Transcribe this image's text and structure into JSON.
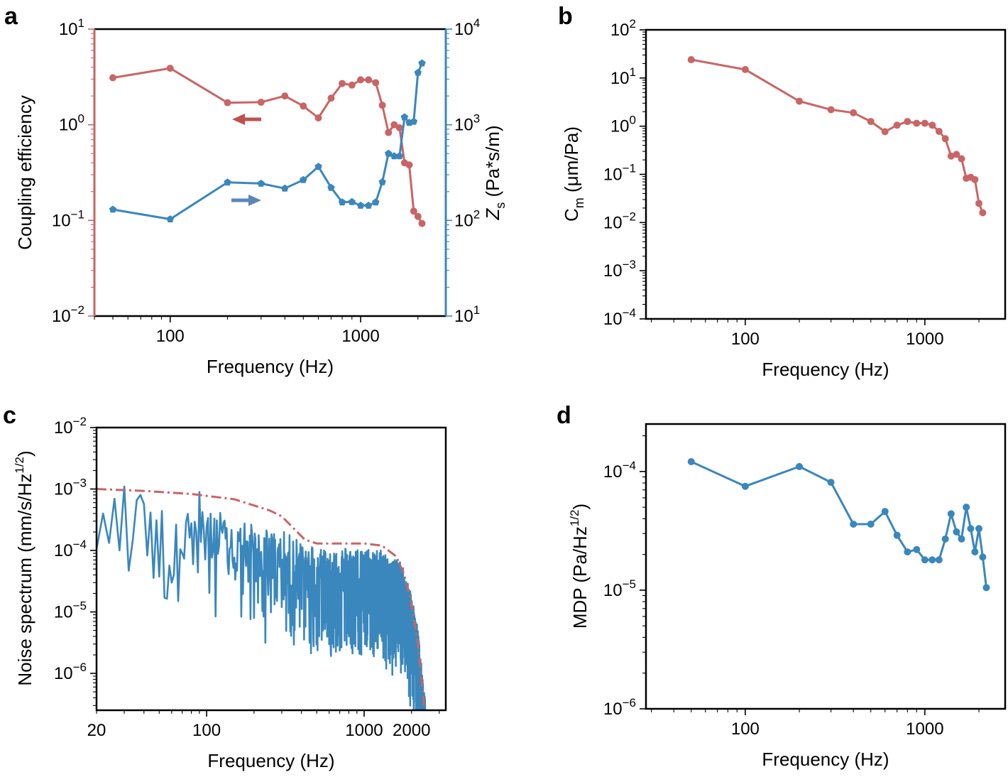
{
  "colors": {
    "red": "#c96565",
    "blue": "#3a87bd",
    "red_arrow": "#c0504d",
    "blue_arrow": "#5b86b8"
  },
  "panels": {
    "a": "a",
    "b": "b",
    "c": "c",
    "d": "d"
  },
  "common": {
    "freq_label": "Frequency (Hz)"
  },
  "chart_data": [
    {
      "id": "a",
      "type": "line",
      "title": "",
      "xlabel": "Frequency (Hz)",
      "xscale": "log",
      "xlim": [
        40,
        2800
      ],
      "xticks": [
        {
          "v": 100,
          "label": "100"
        },
        {
          "v": 1000,
          "label": "1000"
        }
      ],
      "ylabel_left": "Coupling efficiency",
      "ylim_left_log10": [
        -2,
        1
      ],
      "yticks_left": [
        {
          "e": -2,
          "label": "10",
          "sup": "−2"
        },
        {
          "e": -1,
          "label": "10",
          "sup": "−1"
        },
        {
          "e": 0,
          "label": "10",
          "sup": "0"
        },
        {
          "e": 1,
          "label": "10",
          "sup": "1"
        }
      ],
      "ylabel_right_main": "Z",
      "ylabel_right_sub": "s",
      "ylabel_right_rest": " (Pa*s/m)",
      "ylim_right_log10": [
        1,
        4
      ],
      "yticks_right": [
        {
          "e": 1,
          "label": "10",
          "sup": "1"
        },
        {
          "e": 2,
          "label": "10",
          "sup": "2"
        },
        {
          "e": 3,
          "label": "10",
          "sup": "3"
        },
        {
          "e": 4,
          "label": "10",
          "sup": "4"
        }
      ],
      "series": [
        {
          "name": "Coupling efficiency",
          "axis": "left",
          "marker": "circle",
          "x": [
            50,
            100,
            200,
            300,
            400,
            500,
            600,
            700,
            800,
            900,
            1000,
            1100,
            1200,
            1300,
            1400,
            1500,
            1600,
            1700,
            1800,
            1900,
            2000,
            2100
          ],
          "y": [
            3.1,
            3.9,
            1.7,
            1.72,
            2.0,
            1.57,
            1.18,
            1.9,
            2.7,
            2.6,
            2.95,
            2.95,
            2.75,
            1.6,
            0.83,
            1.0,
            0.93,
            0.4,
            0.38,
            0.125,
            0.11,
            0.093
          ]
        },
        {
          "name": "Zs",
          "axis": "right",
          "marker": "pentagon",
          "x": [
            50,
            100,
            200,
            300,
            400,
            500,
            600,
            700,
            800,
            900,
            1000,
            1100,
            1200,
            1300,
            1400,
            1500,
            1600,
            1700,
            1800,
            1900,
            2000,
            2100
          ],
          "y": [
            130,
            103,
            250,
            243,
            216,
            265,
            365,
            220,
            155,
            156,
            143,
            143,
            155,
            252,
            500,
            470,
            470,
            1200,
            1050,
            1080,
            3500,
            4400
          ]
        }
      ]
    },
    {
      "id": "b",
      "type": "line",
      "xlabel": "Frequency (Hz)",
      "xscale": "log",
      "xlim": [
        28,
        2800
      ],
      "xticks": [
        {
          "v": 100,
          "label": "100"
        },
        {
          "v": 1000,
          "label": "1000"
        }
      ],
      "ylabel_main": "C",
      "ylabel_sub": "m",
      "ylabel_rest": " (μm/Pa)",
      "ylim_log10": [
        -4,
        2
      ],
      "yticks": [
        {
          "e": -4,
          "label": "10",
          "sup": "−4"
        },
        {
          "e": -3,
          "label": "10",
          "sup": "−3"
        },
        {
          "e": -2,
          "label": "10",
          "sup": "−2"
        },
        {
          "e": -1,
          "label": "10",
          "sup": "−1"
        },
        {
          "e": 0,
          "label": "10",
          "sup": "0"
        },
        {
          "e": 1,
          "label": "10",
          "sup": "1"
        },
        {
          "e": 2,
          "label": "10",
          "sup": "2"
        }
      ],
      "series": [
        {
          "name": "Cm",
          "marker": "circle",
          "x": [
            50,
            100,
            200,
            300,
            400,
            500,
            600,
            700,
            800,
            900,
            1000,
            1100,
            1200,
            1300,
            1400,
            1500,
            1600,
            1700,
            1800,
            1900,
            2000,
            2100
          ],
          "y": [
            24,
            15,
            3.3,
            2.2,
            1.9,
            1.25,
            0.77,
            1.05,
            1.25,
            1.15,
            1.15,
            1.05,
            0.78,
            0.55,
            0.24,
            0.26,
            0.21,
            0.083,
            0.087,
            0.078,
            0.025,
            0.016
          ]
        }
      ]
    },
    {
      "id": "c",
      "type": "line",
      "xlabel": "Frequency (Hz)",
      "xscale": "log",
      "xlim": [
        20,
        3300
      ],
      "xticks": [
        {
          "v": 20,
          "label": "20"
        },
        {
          "v": 100,
          "label": "100"
        },
        {
          "v": 1000,
          "label": "1000"
        },
        {
          "v": 2000,
          "label": "2000"
        }
      ],
      "ylabel": "Noise spectrum (mm/s/Hz",
      "ylabel_sup": "1/2",
      "ylabel_close": ")",
      "ylim_log10": [
        -6.6,
        -2
      ],
      "yticks": [
        {
          "e": -6,
          "label": "10",
          "sup": "−6"
        },
        {
          "e": -5,
          "label": "10",
          "sup": "−5"
        },
        {
          "e": -4,
          "label": "10",
          "sup": "−4"
        },
        {
          "e": -3,
          "label": "10",
          "sup": "−3"
        },
        {
          "e": -2,
          "label": "10",
          "sup": "−2"
        }
      ],
      "series": [
        {
          "name": "envelope",
          "style": "dashdot",
          "x": [
            20,
            40,
            80,
            150,
            250,
            300,
            350,
            420,
            500,
            700,
            1000,
            1300,
            1600,
            1800,
            2000,
            2200,
            2400
          ],
          "y": [
            0.001,
            0.00093,
            0.00083,
            0.00068,
            0.00045,
            0.00036,
            0.00024,
            0.00015,
            0.00013,
            0.00013,
            0.00013,
            0.00012,
            8e-05,
            4e-05,
            1.3e-05,
            3e-06,
            3e-07
          ]
        },
        {
          "name": "noise",
          "style": "solid",
          "envelope": [
            [
              20,
              0.00045
            ],
            [
              40,
              0.0005
            ],
            [
              80,
              0.0004
            ],
            [
              150,
              0.0002
            ],
            [
              300,
              0.00012
            ],
            [
              500,
              7e-05
            ],
            [
              1300,
              6e-05
            ],
            [
              1700,
              4e-05
            ],
            [
              2000,
              1.2e-05
            ],
            [
              2200,
              3e-06
            ],
            [
              2400,
              3e-07
            ]
          ],
          "spikes": [
            [
              21,
              0.0004
            ],
            [
              27,
              0.0001
            ],
            [
              30,
              0.0011
            ],
            [
              37,
              0.0008
            ],
            [
              53,
              1.7e-05
            ],
            [
              60,
              3e-05
            ],
            [
              65,
              1.5e-05
            ],
            [
              90,
              0.0009
            ],
            [
              110,
              0.0001
            ],
            [
              200,
              8e-06
            ],
            [
              300,
              1.2e-05
            ],
            [
              450,
              3.5e-06
            ],
            [
              600,
              3e-06
            ],
            [
              800,
              4e-06
            ],
            [
              1000,
              5.5e-06
            ],
            [
              1500,
              2.5e-06
            ]
          ]
        }
      ]
    },
    {
      "id": "d",
      "type": "line",
      "xlabel": "Frequency (Hz)",
      "xscale": "log",
      "xlim": [
        28,
        2800
      ],
      "xticks": [
        {
          "v": 100,
          "label": "100"
        },
        {
          "v": 1000,
          "label": "1000"
        }
      ],
      "ylabel": "MDP (Pa/Hz",
      "ylabel_sup": "1/2",
      "ylabel_close": ")",
      "ylim_log10": [
        -6,
        -3.6
      ],
      "yticks": [
        {
          "e": -6,
          "label": "10",
          "sup": "−6"
        },
        {
          "e": -5,
          "label": "10",
          "sup": "−5"
        },
        {
          "e": -4,
          "label": "10",
          "sup": "−4"
        }
      ],
      "series": [
        {
          "name": "MDP",
          "marker": "circle",
          "x": [
            50,
            100,
            200,
            300,
            400,
            500,
            600,
            700,
            800,
            900,
            1000,
            1100,
            1200,
            1300,
            1400,
            1500,
            1600,
            1700,
            1800,
            1900,
            2000,
            2100,
            2200
          ],
          "y": [
            0.000121,
            7.5e-05,
            0.00011,
            8.1e-05,
            3.6e-05,
            3.6e-05,
            4.6e-05,
            2.9e-05,
            2.1e-05,
            2.2e-05,
            1.8e-05,
            1.8e-05,
            1.8e-05,
            2.7e-05,
            4.4e-05,
            3.1e-05,
            2.7e-05,
            5e-05,
            3.3e-05,
            2.1e-05,
            3.3e-05,
            1.9e-05,
            1.05e-05
          ]
        }
      ]
    }
  ]
}
